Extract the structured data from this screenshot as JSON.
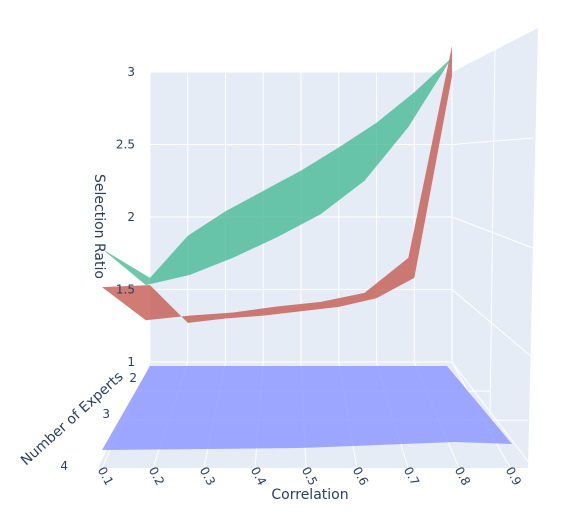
{
  "chart_data": {
    "type": "surface-3d",
    "axes": {
      "x": {
        "title": "Correlation",
        "ticks": [
          "0.1",
          "0.2",
          "0.3",
          "0.4",
          "0.5",
          "0.6",
          "0.7",
          "0.8",
          "0.9"
        ]
      },
      "y": {
        "title": "Number of Experts",
        "ticks": [
          "2",
          "3",
          "4"
        ]
      },
      "z": {
        "title": "Selection Ratio",
        "ticks": [
          "1",
          "1.5",
          "2",
          "2.5",
          "3"
        ],
        "range": [
          1,
          3
        ]
      }
    },
    "x": [
      0.1,
      0.2,
      0.3,
      0.4,
      0.5,
      0.6,
      0.7,
      0.8,
      0.9
    ],
    "series": [
      {
        "color": "#45b993",
        "values": [
          1.58,
          1.87,
          2.04,
          2.18,
          2.32,
          2.48,
          2.65,
          2.86,
          3.1
        ],
        "front_values": [
          1.78,
          1.53,
          1.6,
          1.72,
          1.86,
          2.02,
          2.25,
          2.62,
          3.1
        ]
      },
      {
        "color": "#c8645a",
        "values": [
          1.53,
          1.27,
          1.3,
          1.32,
          1.35,
          1.38,
          1.44,
          1.58,
          2.97
        ],
        "front_values": [
          1.53,
          1.3,
          1.33,
          1.35,
          1.39,
          1.42,
          1.48,
          1.72,
          3.18
        ]
      },
      {
        "color": "#8c96ff",
        "values": [
          1,
          1,
          1,
          1,
          1,
          1,
          1,
          1,
          1
        ]
      }
    ],
    "grid": true
  }
}
